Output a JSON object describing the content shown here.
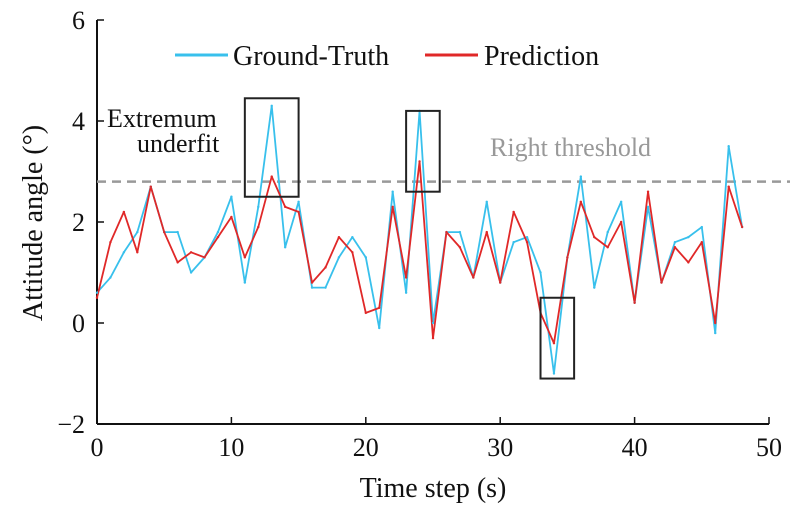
{
  "chart_data": {
    "type": "line",
    "title": "",
    "xlabel": "Time step (s)",
    "ylabel": "Attitude angle (°)",
    "xlim": [
      0,
      50
    ],
    "ylim": [
      -2,
      6
    ],
    "xticks": [
      0,
      10,
      20,
      30,
      40,
      50
    ],
    "yticks": [
      -2,
      0,
      2,
      4,
      6
    ],
    "ytick_labels": [
      "−2",
      "0",
      "2",
      "4",
      "6"
    ],
    "grid": false,
    "legend_position": "top",
    "series": [
      {
        "name": "Ground-Truth",
        "color": "#38c0ec",
        "x": [
          0,
          1,
          2,
          3,
          4,
          5,
          6,
          7,
          8,
          9,
          10,
          11,
          12,
          13,
          14,
          15,
          16,
          17,
          18,
          19,
          20,
          21,
          22,
          23,
          24,
          25,
          26,
          27,
          28,
          29,
          30,
          31,
          32,
          33,
          34,
          35,
          36,
          37,
          38,
          39,
          40,
          41,
          42,
          43,
          44,
          45,
          46,
          47,
          48
        ],
        "values": [
          0.6,
          0.9,
          1.4,
          1.8,
          2.7,
          1.8,
          1.8,
          1.0,
          1.3,
          1.8,
          2.5,
          0.8,
          2.3,
          4.3,
          1.5,
          2.4,
          0.7,
          0.7,
          1.3,
          1.7,
          1.3,
          -0.1,
          2.6,
          0.6,
          4.2,
          0.0,
          1.8,
          1.8,
          0.9,
          2.4,
          0.8,
          1.6,
          1.7,
          1.0,
          -1.0,
          1.3,
          2.9,
          0.7,
          1.8,
          2.4,
          0.4,
          2.3,
          0.8,
          1.6,
          1.7,
          1.9,
          -0.2,
          3.5,
          1.9
        ]
      },
      {
        "name": "Prediction",
        "color": "#e02828",
        "x": [
          0,
          1,
          2,
          3,
          4,
          5,
          6,
          7,
          8,
          9,
          10,
          11,
          12,
          13,
          14,
          15,
          16,
          17,
          18,
          19,
          20,
          21,
          22,
          23,
          24,
          25,
          26,
          27,
          28,
          29,
          30,
          31,
          32,
          33,
          34,
          35,
          36,
          37,
          38,
          39,
          40,
          41,
          42,
          43,
          44,
          45,
          46,
          47,
          48
        ],
        "values": [
          0.5,
          1.6,
          2.2,
          1.4,
          2.7,
          1.8,
          1.2,
          1.4,
          1.3,
          1.7,
          2.1,
          1.3,
          1.9,
          2.9,
          2.3,
          2.2,
          0.8,
          1.1,
          1.7,
          1.4,
          0.2,
          0.3,
          2.3,
          0.9,
          3.2,
          -0.3,
          1.8,
          1.5,
          0.9,
          1.8,
          0.8,
          2.2,
          1.6,
          0.2,
          -0.4,
          1.3,
          2.4,
          1.7,
          1.5,
          2.0,
          0.4,
          2.6,
          0.8,
          1.5,
          1.2,
          1.6,
          0.0,
          2.7,
          1.9
        ]
      }
    ],
    "threshold": {
      "label": "Right threshold",
      "value": 2.8,
      "color": "#999999"
    },
    "annotations": [
      {
        "label_line1": "Extremum",
        "label_line2": "underfit"
      }
    ],
    "highlight_boxes": [
      {
        "x_range": [
          11,
          15
        ],
        "y_range": [
          2.5,
          4.45
        ]
      },
      {
        "x_range": [
          23,
          25.5
        ],
        "y_range": [
          2.6,
          4.2
        ]
      },
      {
        "x_range": [
          33,
          35.5
        ],
        "y_range": [
          -1.1,
          0.5
        ]
      }
    ]
  }
}
